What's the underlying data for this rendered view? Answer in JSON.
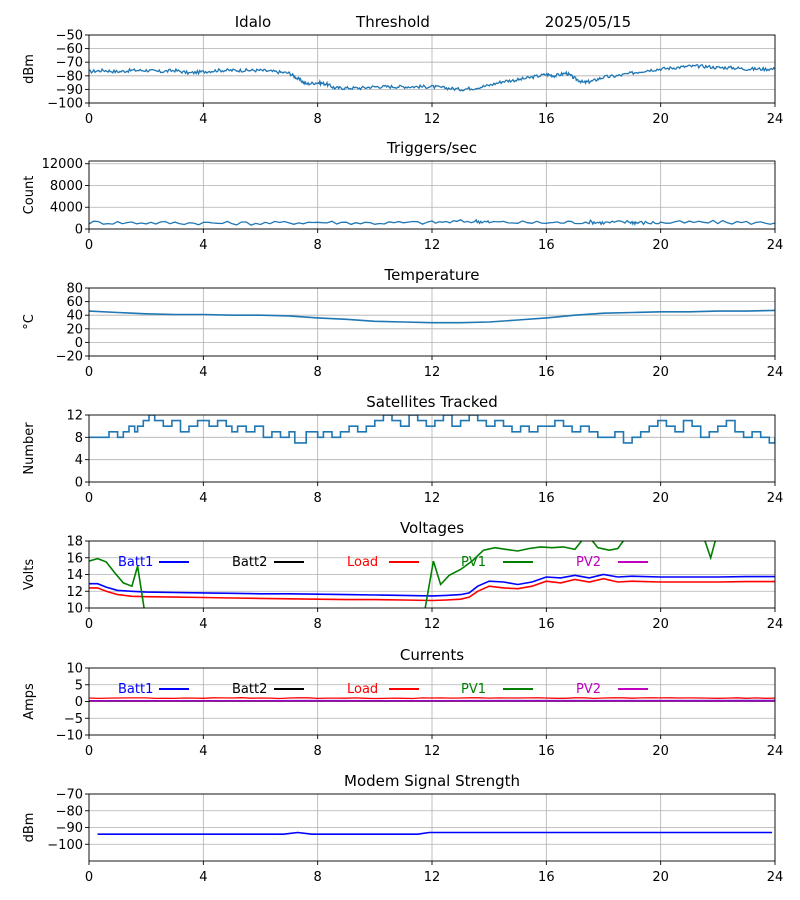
{
  "header": {
    "site": "Idalo",
    "plot_name": "Threshold",
    "date": "2025/05/15"
  },
  "colors": {
    "default_line": "#1f77b4",
    "batt1": "#0000ff",
    "batt2": "#000000",
    "load": "#ff0000",
    "pv1": "#008000",
    "pv2": "#bf00bf",
    "grid": "#b0b0b0"
  },
  "chart_data": [
    {
      "type": "line",
      "title": "",
      "ylabel": "dBm",
      "ylim": [
        -100,
        -50
      ],
      "yticks": [
        -100,
        -90,
        -80,
        -70,
        -60,
        -50
      ],
      "xlim": [
        0,
        24
      ],
      "xticks": [
        0,
        4,
        8,
        12,
        16,
        20,
        24
      ],
      "grid": true,
      "series": [
        {
          "color_key": "default_line",
          "noise": 1.2,
          "x": [
            0,
            0.5,
            1,
            1.5,
            2,
            2.5,
            3,
            3.5,
            4,
            4.5,
            5,
            5.5,
            6,
            6.5,
            7,
            7.3,
            7.6,
            8,
            8.3,
            8.6,
            9,
            9.5,
            10,
            10.5,
            11,
            11.5,
            12,
            12.5,
            13,
            13.5,
            14,
            14.5,
            15,
            15.5,
            16,
            16.3,
            16.7,
            17,
            17.3,
            17.6,
            18,
            18.5,
            19,
            19.5,
            20,
            20.5,
            21,
            21.5,
            22,
            22.5,
            23,
            23.5,
            24
          ],
          "y": [
            -77,
            -76,
            -77,
            -76,
            -76,
            -77,
            -76,
            -78,
            -77,
            -76,
            -76,
            -76,
            -76,
            -77,
            -78,
            -82,
            -86,
            -85,
            -86,
            -89,
            -89,
            -89,
            -88,
            -88,
            -88,
            -88,
            -88,
            -89,
            -90,
            -89,
            -87,
            -84,
            -83,
            -81,
            -79,
            -80,
            -78,
            -82,
            -85,
            -84,
            -81,
            -80,
            -78,
            -76,
            -75,
            -74,
            -73,
            -73,
            -74,
            -74,
            -75,
            -75,
            -75
          ]
        }
      ]
    },
    {
      "type": "line",
      "title": "Triggers/sec",
      "ylabel": "Count",
      "ylim": [
        0,
        12500
      ],
      "yticks": [
        0,
        4000,
        8000,
        12000
      ],
      "xlim": [
        0,
        24
      ],
      "xticks": [
        0,
        4,
        8,
        12,
        16,
        20,
        24
      ],
      "grid": true,
      "series": [
        {
          "color_key": "default_line",
          "noise": 350,
          "x": [
            0,
            2,
            4,
            6,
            8,
            10,
            12,
            13.5,
            14,
            16,
            17.5,
            18,
            18.9,
            19.2,
            20,
            22,
            24
          ],
          "y": [
            1200,
            1150,
            1100,
            1050,
            1250,
            1100,
            1200,
            1450,
            1250,
            1150,
            1300,
            1150,
            1300,
            1150,
            1150,
            1250,
            1100
          ]
        }
      ]
    },
    {
      "type": "line",
      "title": "Temperature",
      "ylabel": "°C",
      "ylim": [
        -20,
        80
      ],
      "yticks": [
        -20,
        0,
        20,
        40,
        60,
        80
      ],
      "xlim": [
        0,
        24
      ],
      "xticks": [
        0,
        4,
        8,
        12,
        16,
        20,
        24
      ],
      "grid": true,
      "series": [
        {
          "color_key": "default_line",
          "noise": 0,
          "x": [
            0,
            1,
            2,
            3,
            4,
            5,
            6,
            7,
            8,
            9,
            10,
            11,
            12,
            13,
            14,
            15,
            16,
            17,
            18,
            19,
            20,
            21,
            22,
            23,
            24
          ],
          "y": [
            46,
            44,
            42,
            41,
            41,
            40,
            40,
            39,
            36,
            34,
            31,
            30,
            29,
            29,
            30,
            33,
            36,
            40,
            43,
            44,
            45,
            45,
            46,
            46,
            47
          ]
        }
      ]
    },
    {
      "type": "line",
      "title": "Satellites Tracked",
      "ylabel": "Number",
      "ylim": [
        0,
        12
      ],
      "yticks": [
        0,
        4,
        8,
        12
      ],
      "xlim": [
        0,
        24
      ],
      "xticks": [
        0,
        4,
        8,
        12,
        16,
        20,
        24
      ],
      "grid": true,
      "series": [
        {
          "color_key": "default_line",
          "noise": 0,
          "step": true,
          "x": [
            0,
            0.5,
            0.7,
            1,
            1.2,
            1.4,
            1.6,
            1.7,
            1.9,
            2.1,
            2.3,
            2.6,
            2.9,
            3.2,
            3.5,
            3.8,
            4,
            4.2,
            4.5,
            4.8,
            5,
            5.2,
            5.5,
            5.8,
            6.1,
            6.4,
            6.7,
            7,
            7.2,
            7.6,
            8,
            8.2,
            8.5,
            8.8,
            9.1,
            9.4,
            9.7,
            10,
            10.3,
            10.6,
            10.9,
            11.2,
            11.5,
            11.8,
            12.1,
            12.4,
            12.7,
            13,
            13.3,
            13.6,
            13.9,
            14.2,
            14.5,
            14.8,
            15.1,
            15.4,
            15.7,
            16,
            16.3,
            16.6,
            16.9,
            17.2,
            17.5,
            17.8,
            18.1,
            18.4,
            18.7,
            19,
            19.3,
            19.6,
            19.9,
            20.2,
            20.5,
            20.8,
            21.1,
            21.4,
            21.7,
            22,
            22.3,
            22.6,
            22.9,
            23.2,
            23.5,
            23.8,
            24
          ],
          "y": [
            8,
            8,
            9,
            8,
            9,
            10,
            9,
            10,
            11,
            12,
            11,
            10,
            11,
            9,
            10,
            11,
            11,
            10,
            11,
            10,
            9,
            10,
            9,
            10,
            8,
            9,
            8,
            9,
            7,
            9,
            8,
            9,
            8,
            9,
            10,
            9,
            10,
            11,
            12,
            11,
            10,
            12,
            11,
            10,
            11,
            12,
            10,
            11,
            12,
            11,
            10,
            11,
            10,
            9,
            10,
            9,
            10,
            10,
            11,
            10,
            9,
            10,
            9,
            8,
            8,
            9,
            7,
            8,
            9,
            10,
            11,
            10,
            9,
            11,
            10,
            8,
            9,
            10,
            11,
            9,
            8,
            9,
            8,
            7,
            8
          ]
        }
      ]
    },
    {
      "type": "line",
      "title": "Voltages",
      "ylabel": "Volts",
      "ylim": [
        10,
        18
      ],
      "yticks": [
        10,
        12,
        14,
        16,
        18
      ],
      "xlim": [
        0,
        24
      ],
      "xticks": [
        0,
        4,
        8,
        12,
        16,
        20,
        24
      ],
      "grid": true,
      "legend": "top, horizontal",
      "series": [
        {
          "name": "Batt1",
          "color_key": "batt1",
          "noise": 0,
          "x": [
            0,
            0.3,
            0.6,
            1,
            1.5,
            2,
            3,
            4,
            5,
            6,
            7,
            8,
            9,
            10,
            11,
            12,
            12.5,
            13,
            13.3,
            13.6,
            14,
            14.5,
            15,
            15.5,
            16,
            16.5,
            17,
            17.5,
            18,
            18.5,
            19,
            20,
            21,
            22,
            23,
            24
          ],
          "y": [
            12.9,
            12.9,
            12.5,
            12.1,
            12.0,
            11.9,
            11.85,
            11.8,
            11.75,
            11.7,
            11.7,
            11.65,
            11.6,
            11.55,
            11.5,
            11.45,
            11.5,
            11.6,
            11.8,
            12.6,
            13.2,
            13.1,
            12.8,
            13.1,
            13.7,
            13.6,
            13.9,
            13.6,
            14.0,
            13.7,
            13.8,
            13.7,
            13.7,
            13.7,
            13.75,
            13.75
          ]
        },
        {
          "name": "Batt2",
          "color_key": "batt2",
          "noise": 0,
          "x": [],
          "y": []
        },
        {
          "name": "Load",
          "color_key": "load",
          "noise": 0,
          "x": [
            0,
            0.3,
            0.6,
            1,
            1.5,
            2,
            3,
            4,
            5,
            6,
            7,
            8,
            9,
            10,
            11,
            12,
            12.5,
            13,
            13.3,
            13.6,
            14,
            14.5,
            15,
            15.5,
            16,
            16.5,
            17,
            17.5,
            18,
            18.5,
            19,
            20,
            21,
            22,
            23,
            24
          ],
          "y": [
            12.4,
            12.4,
            12.0,
            11.6,
            11.4,
            11.35,
            11.3,
            11.25,
            11.2,
            11.15,
            11.1,
            11.05,
            11.0,
            11.0,
            10.95,
            10.9,
            10.95,
            11.05,
            11.3,
            12.0,
            12.6,
            12.4,
            12.3,
            12.6,
            13.2,
            13.0,
            13.4,
            13.1,
            13.5,
            13.1,
            13.2,
            13.1,
            13.1,
            13.1,
            13.15,
            13.15
          ]
        },
        {
          "name": "PV1",
          "color_key": "pv1",
          "noise": 0,
          "segments": [
            {
              "x": [
                0,
                0.3,
                0.6,
                0.9,
                1.2,
                1.5,
                1.7,
                1.95
              ],
              "y": [
                15.6,
                15.9,
                15.5,
                14.2,
                13.0,
                12.6,
                15.0,
                9.5
              ]
            },
            {
              "x": [
                11.75,
                12.05,
                12.3,
                12.6,
                13.0,
                13.4,
                13.8,
                14.2,
                14.6,
                15,
                15.4,
                15.8,
                16.2,
                16.6,
                17,
                17.3,
                17.5,
                17.8,
                18.2,
                18.5,
                18.8
              ],
              "y": [
                9.8,
                15.6,
                12.8,
                13.9,
                14.6,
                15.6,
                16.9,
                17.2,
                17.0,
                16.8,
                17.1,
                17.3,
                17.2,
                17.3,
                17.0,
                18.3,
                18.5,
                17.2,
                16.9,
                17.1,
                18.5
              ]
            },
            {
              "x": [
                21.5,
                21.75,
                21.9,
                22.0
              ],
              "y": [
                18.5,
                16.0,
                17.9,
                18.5
              ]
            }
          ]
        },
        {
          "name": "PV2",
          "color_key": "pv2",
          "noise": 0,
          "x": [],
          "y": []
        }
      ]
    },
    {
      "type": "line",
      "title": "Currents",
      "ylabel": "Amps",
      "ylim": [
        -10,
        10
      ],
      "yticks": [
        -10,
        -5,
        0,
        5,
        10
      ],
      "xlim": [
        0,
        24
      ],
      "xticks": [
        0,
        4,
        8,
        12,
        16,
        20,
        24
      ],
      "grid": true,
      "legend": "top, horizontal",
      "series": [
        {
          "name": "Batt1",
          "color_key": "batt1",
          "noise": 0,
          "x": [
            0,
            4,
            8,
            12,
            16,
            20,
            24
          ],
          "y": [
            0.2,
            0.2,
            0.25,
            0.2,
            0.25,
            0.25,
            0.3
          ]
        },
        {
          "name": "Batt2",
          "color_key": "batt2",
          "noise": 0,
          "x": [],
          "y": []
        },
        {
          "name": "Load",
          "color_key": "load",
          "noise": 0.12,
          "x": [
            0,
            4,
            8,
            12,
            16,
            20,
            24
          ],
          "y": [
            1.0,
            1.0,
            1.0,
            1.0,
            1.0,
            1.0,
            1.0
          ]
        },
        {
          "name": "PV1",
          "color_key": "pv1",
          "noise": 0,
          "x": [
            0,
            4,
            8,
            12,
            16,
            20,
            24
          ],
          "y": [
            0.1,
            0.1,
            0.1,
            0.1,
            0.1,
            0.1,
            0.1
          ]
        },
        {
          "name": "PV2",
          "color_key": "pv2",
          "noise": 0,
          "x": [
            0,
            4,
            8,
            12,
            16,
            20,
            24
          ],
          "y": [
            0.15,
            0.15,
            0.15,
            0.15,
            0.15,
            0.15,
            0.15
          ]
        }
      ]
    },
    {
      "type": "line",
      "title": "Modem Signal Strength",
      "ylabel": "dBm",
      "ylim": [
        -110,
        -70
      ],
      "yticks": [
        -100,
        -90,
        -80,
        -70
      ],
      "xlim": [
        0,
        24
      ],
      "xticks": [
        0,
        4,
        8,
        12,
        16,
        20,
        24
      ],
      "grid": true,
      "series": [
        {
          "color_key": "batt1",
          "noise": 0,
          "x": [
            0.3,
            2,
            4,
            6,
            6.8,
            7.3,
            7.8,
            8,
            10,
            11.5,
            11.9,
            12,
            14,
            16,
            18,
            20,
            22,
            23.9
          ],
          "y": [
            -94,
            -94,
            -94,
            -94,
            -94,
            -93,
            -94,
            -94,
            -94,
            -94,
            -93,
            -93,
            -93,
            -93,
            -93,
            -93,
            -93,
            -93
          ]
        }
      ]
    }
  ]
}
